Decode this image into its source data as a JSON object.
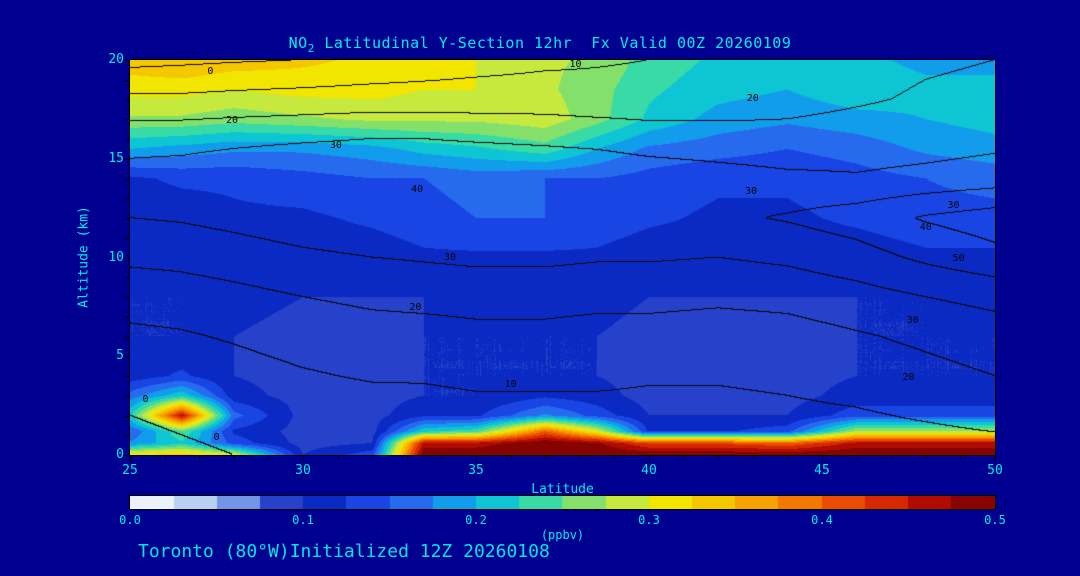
{
  "title": {
    "prefix": "NO",
    "sub": "2",
    "rest": " Latitudinal Y-Section 12hr  Fx Valid 00Z 20260109"
  },
  "footer": "Toronto (80°W)Initialized 12Z 20260108",
  "axes": {
    "x_label": "Latitude",
    "y_label": "Altitude (km)",
    "x_ticks": [
      "25",
      "30",
      "35",
      "40",
      "45",
      "50"
    ],
    "y_ticks": [
      "0",
      "5",
      "10",
      "15",
      "20"
    ],
    "x_range": [
      25,
      50
    ],
    "y_range": [
      0,
      20
    ],
    "minor_step": 1,
    "major_step": 5
  },
  "colorbar": {
    "unit": "(ppbv)",
    "ticks": [
      "0.0",
      "0.1",
      "0.2",
      "0.3",
      "0.4",
      "0.5"
    ],
    "range": [
      0.0,
      0.5
    ],
    "stops": [
      [
        0.0,
        "#ffffff"
      ],
      [
        0.03,
        "#cfe2f3"
      ],
      [
        0.06,
        "#7aa0e8"
      ],
      [
        0.085,
        "#2a44cc"
      ],
      [
        0.11,
        "#0a28c0"
      ],
      [
        0.14,
        "#1a48e8"
      ],
      [
        0.17,
        "#2a78f0"
      ],
      [
        0.2,
        "#00b8e8"
      ],
      [
        0.23,
        "#22d8b8"
      ],
      [
        0.26,
        "#7ce070"
      ],
      [
        0.29,
        "#cdea3a"
      ],
      [
        0.31,
        "#f2ea00"
      ],
      [
        0.34,
        "#f6c400"
      ],
      [
        0.37,
        "#f89800"
      ],
      [
        0.4,
        "#f26000"
      ],
      [
        0.43,
        "#e03000"
      ],
      [
        0.46,
        "#b40c00"
      ],
      [
        0.5,
        "#700000"
      ]
    ]
  },
  "chart_data": {
    "type": "heatmap",
    "title": "NO2 Latitudinal Y-Section 12hr Fx Valid 00Z 20260109",
    "xlabel": "Latitude",
    "ylabel": "Altitude (km)",
    "xlim": [
      25,
      50
    ],
    "ylim": [
      0,
      20
    ],
    "unit": "ppbv",
    "clim": [
      0.0,
      0.5
    ],
    "fill_level_step": 0.025,
    "lats": [
      25,
      26.5,
      28,
      30,
      32,
      33.5,
      35,
      37,
      38.5,
      40,
      42,
      44,
      46,
      48,
      50
    ],
    "alts": [
      0,
      0.6,
      1.2,
      2,
      3,
      4,
      6,
      8,
      10,
      12,
      14,
      15.5,
      17,
      18.5,
      20
    ],
    "values_ppbv": [
      [
        0.32,
        0.34,
        0.3,
        0.1,
        0.14,
        0.5,
        0.5,
        0.5,
        0.5,
        0.5,
        0.5,
        0.5,
        0.5,
        0.5,
        0.5
      ],
      [
        0.18,
        0.22,
        0.14,
        0.09,
        0.1,
        0.46,
        0.46,
        0.5,
        0.48,
        0.42,
        0.42,
        0.4,
        0.46,
        0.46,
        0.46
      ],
      [
        0.15,
        0.25,
        0.12,
        0.09,
        0.09,
        0.22,
        0.24,
        0.4,
        0.3,
        0.12,
        0.12,
        0.14,
        0.28,
        0.28,
        0.28
      ],
      [
        0.22,
        0.46,
        0.16,
        0.09,
        0.09,
        0.12,
        0.12,
        0.18,
        0.14,
        0.1,
        0.1,
        0.1,
        0.14,
        0.14,
        0.14
      ],
      [
        0.16,
        0.22,
        0.11,
        0.09,
        0.09,
        0.1,
        0.1,
        0.12,
        0.11,
        0.09,
        0.09,
        0.09,
        0.11,
        0.11,
        0.11
      ],
      [
        0.11,
        0.13,
        0.1,
        0.09,
        0.09,
        0.1,
        0.1,
        0.1,
        0.1,
        0.09,
        0.09,
        0.09,
        0.1,
        0.1,
        0.1
      ],
      [
        0.1,
        0.1,
        0.1,
        0.09,
        0.09,
        0.1,
        0.1,
        0.1,
        0.1,
        0.09,
        0.09,
        0.09,
        0.1,
        0.1,
        0.1
      ],
      [
        0.1,
        0.1,
        0.11,
        0.1,
        0.1,
        0.1,
        0.11,
        0.11,
        0.11,
        0.1,
        0.1,
        0.1,
        0.1,
        0.1,
        0.11
      ],
      [
        0.1,
        0.11,
        0.11,
        0.11,
        0.11,
        0.12,
        0.12,
        0.12,
        0.12,
        0.11,
        0.11,
        0.11,
        0.11,
        0.12,
        0.12
      ],
      [
        0.11,
        0.11,
        0.12,
        0.12,
        0.13,
        0.14,
        0.15,
        0.15,
        0.14,
        0.13,
        0.12,
        0.12,
        0.13,
        0.14,
        0.14
      ],
      [
        0.12,
        0.13,
        0.13,
        0.14,
        0.15,
        0.15,
        0.16,
        0.15,
        0.15,
        0.14,
        0.13,
        0.13,
        0.14,
        0.15,
        0.16
      ],
      [
        0.2,
        0.19,
        0.18,
        0.18,
        0.19,
        0.21,
        0.22,
        0.24,
        0.2,
        0.17,
        0.16,
        0.15,
        0.16,
        0.18,
        0.19
      ],
      [
        0.27,
        0.27,
        0.26,
        0.27,
        0.28,
        0.28,
        0.28,
        0.29,
        0.26,
        0.22,
        0.19,
        0.18,
        0.19,
        0.2,
        0.21
      ],
      [
        0.31,
        0.31,
        0.3,
        0.31,
        0.31,
        0.3,
        0.3,
        0.28,
        0.26,
        0.23,
        0.21,
        0.2,
        0.22,
        0.21,
        0.21
      ],
      [
        0.34,
        0.35,
        0.34,
        0.33,
        0.32,
        0.31,
        0.3,
        0.28,
        0.27,
        0.24,
        0.22,
        0.2,
        0.21,
        0.19,
        0.19
      ]
    ],
    "contour_levels": [
      0,
      10,
      20,
      30,
      40,
      50
    ],
    "contour_alts": [
      0,
      2,
      4,
      6,
      8,
      10,
      12,
      14,
      16,
      18,
      20
    ],
    "contour_grid": [
      [
        -2,
        -1,
        0,
        1,
        2,
        3,
        3,
        4,
        4,
        4,
        4,
        4,
        5,
        5,
        6
      ],
      [
        0,
        1,
        2,
        4,
        5,
        6,
        7,
        7,
        7,
        7,
        7,
        8,
        9,
        11,
        13
      ],
      [
        3,
        4,
        6,
        9,
        11,
        11,
        12,
        12,
        12,
        11,
        11,
        12,
        14,
        17,
        20
      ],
      [
        8,
        9,
        11,
        14,
        16,
        16,
        17,
        17,
        16,
        16,
        15,
        16,
        19,
        22,
        25
      ],
      [
        14,
        15,
        17,
        20,
        22,
        23,
        24,
        24,
        23,
        23,
        22,
        23,
        26,
        30,
        33
      ],
      [
        22,
        23,
        25,
        28,
        30,
        31,
        32,
        32,
        31,
        31,
        30,
        32,
        36,
        42,
        47
      ],
      [
        30,
        31,
        33,
        36,
        38,
        39,
        40,
        40,
        39,
        39,
        38,
        41,
        45,
        51,
        55
      ],
      [
        33,
        34,
        36,
        38,
        39,
        39,
        40,
        39,
        38,
        36,
        34,
        32,
        31,
        33,
        35
      ],
      [
        27,
        27,
        28,
        29,
        30,
        30,
        29,
        28,
        27,
        25,
        24,
        23,
        24,
        25,
        27
      ],
      [
        12,
        12,
        13,
        14,
        15,
        15,
        15,
        15,
        14,
        14,
        15,
        17,
        19,
        21,
        22
      ],
      [
        -3,
        -2,
        -1,
        0,
        2,
        4,
        6,
        8,
        9,
        10,
        12,
        15,
        17,
        19,
        20
      ]
    ],
    "contour_labels": [
      {
        "text": "0",
        "fx": 0.093,
        "fy": 0.03
      },
      {
        "text": "10",
        "fx": 0.515,
        "fy": 0.012
      },
      {
        "text": "20",
        "fx": 0.72,
        "fy": 0.098
      },
      {
        "text": "20",
        "fx": 0.118,
        "fy": 0.155
      },
      {
        "text": "30",
        "fx": 0.238,
        "fy": 0.218
      },
      {
        "text": "40",
        "fx": 0.332,
        "fy": 0.33
      },
      {
        "text": "30",
        "fx": 0.718,
        "fy": 0.335
      },
      {
        "text": "30",
        "fx": 0.952,
        "fy": 0.37
      },
      {
        "text": "40",
        "fx": 0.92,
        "fy": 0.425
      },
      {
        "text": "50",
        "fx": 0.958,
        "fy": 0.505
      },
      {
        "text": "30",
        "fx": 0.37,
        "fy": 0.5
      },
      {
        "text": "20",
        "fx": 0.33,
        "fy": 0.628
      },
      {
        "text": "30",
        "fx": 0.905,
        "fy": 0.66
      },
      {
        "text": "20",
        "fx": 0.9,
        "fy": 0.805
      },
      {
        "text": "10",
        "fx": 0.44,
        "fy": 0.822
      },
      {
        "text": "0",
        "fx": 0.018,
        "fy": 0.862
      },
      {
        "text": "0",
        "fx": 0.1,
        "fy": 0.958
      }
    ]
  }
}
